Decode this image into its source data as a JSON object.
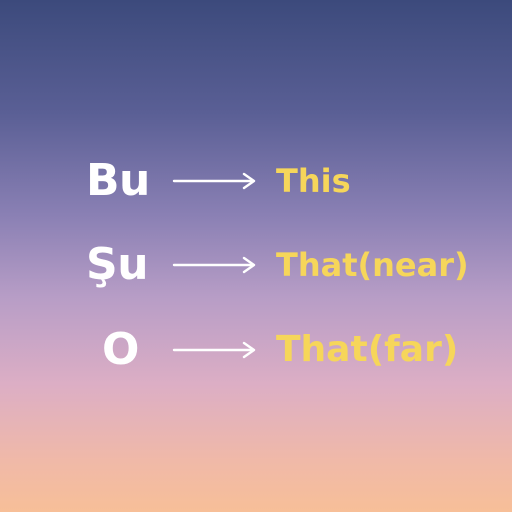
{
  "rows": [
    {
      "word": "Bu",
      "meaning": "This"
    },
    {
      "word": "Şu",
      "meaning": "That(near)"
    },
    {
      "word": "O",
      "meaning": "That(far)"
    }
  ],
  "colors": {
    "word": "#ffffff",
    "meaning": "#f6d65a",
    "arrow": "#ffffff"
  },
  "icons": {
    "arrow": "right-arrow-icon"
  }
}
